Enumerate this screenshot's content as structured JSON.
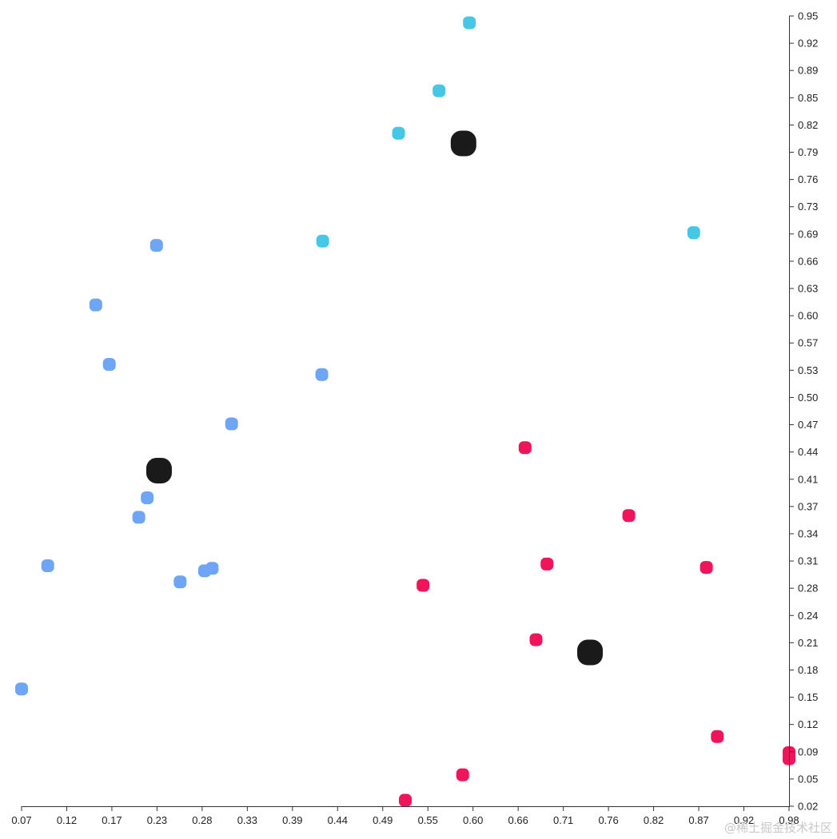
{
  "chart_data": {
    "type": "scatter",
    "title": "",
    "xlabel": "",
    "ylabel": "",
    "xlim": [
      0.07,
      0.98
    ],
    "ylim": [
      0.02,
      0.95
    ],
    "grid": false,
    "x_ticks": [
      "0.07",
      "0.12",
      "0.17",
      "0.23",
      "0.28",
      "0.33",
      "0.39",
      "0.44",
      "0.49",
      "0.55",
      "0.60",
      "0.66",
      "0.71",
      "0.76",
      "0.82",
      "0.87",
      "0.92",
      "0.98"
    ],
    "y_ticks": [
      "0.95",
      "0.92",
      "0.89",
      "0.85",
      "0.82",
      "0.79",
      "0.76",
      "0.73",
      "0.69",
      "0.66",
      "0.63",
      "0.60",
      "0.57",
      "0.53",
      "0.50",
      "0.47",
      "0.44",
      "0.41",
      "0.37",
      "0.34",
      "0.31",
      "0.28",
      "0.24",
      "0.21",
      "0.18",
      "0.15",
      "0.12",
      "0.09",
      "0.05",
      "0.02"
    ],
    "series": [
      {
        "color": "#6ea6f5",
        "points": [
          [
            0.07,
            0.158
          ],
          [
            0.101,
            0.303
          ],
          [
            0.158,
            0.61
          ],
          [
            0.174,
            0.54
          ],
          [
            0.209,
            0.36
          ],
          [
            0.219,
            0.383
          ],
          [
            0.23,
            0.68
          ],
          [
            0.258,
            0.284
          ],
          [
            0.287,
            0.297
          ],
          [
            0.296,
            0.3
          ],
          [
            0.319,
            0.47
          ],
          [
            0.426,
            0.528
          ]
        ]
      },
      {
        "color": "#45c8e6",
        "points": [
          [
            0.427,
            0.685
          ],
          [
            0.517,
            0.812
          ],
          [
            0.565,
            0.862
          ],
          [
            0.601,
            0.942
          ],
          [
            0.867,
            0.695
          ]
        ]
      },
      {
        "color": "#f0145a",
        "points": [
          [
            0.525,
            0.027
          ],
          [
            0.546,
            0.28
          ],
          [
            0.593,
            0.057
          ],
          [
            0.667,
            0.442
          ],
          [
            0.68,
            0.216
          ],
          [
            0.693,
            0.305
          ],
          [
            0.79,
            0.362
          ],
          [
            0.882,
            0.301
          ],
          [
            0.895,
            0.102
          ],
          [
            0.98,
            0.083
          ],
          [
            0.98,
            0.076
          ]
        ]
      },
      {
        "color": "#1a1a1a",
        "marker": "centroid",
        "points": [
          [
            0.233,
            0.415
          ],
          [
            0.594,
            0.8
          ],
          [
            0.744,
            0.201
          ]
        ]
      }
    ]
  },
  "watermark": "@稀土掘金技术社区"
}
